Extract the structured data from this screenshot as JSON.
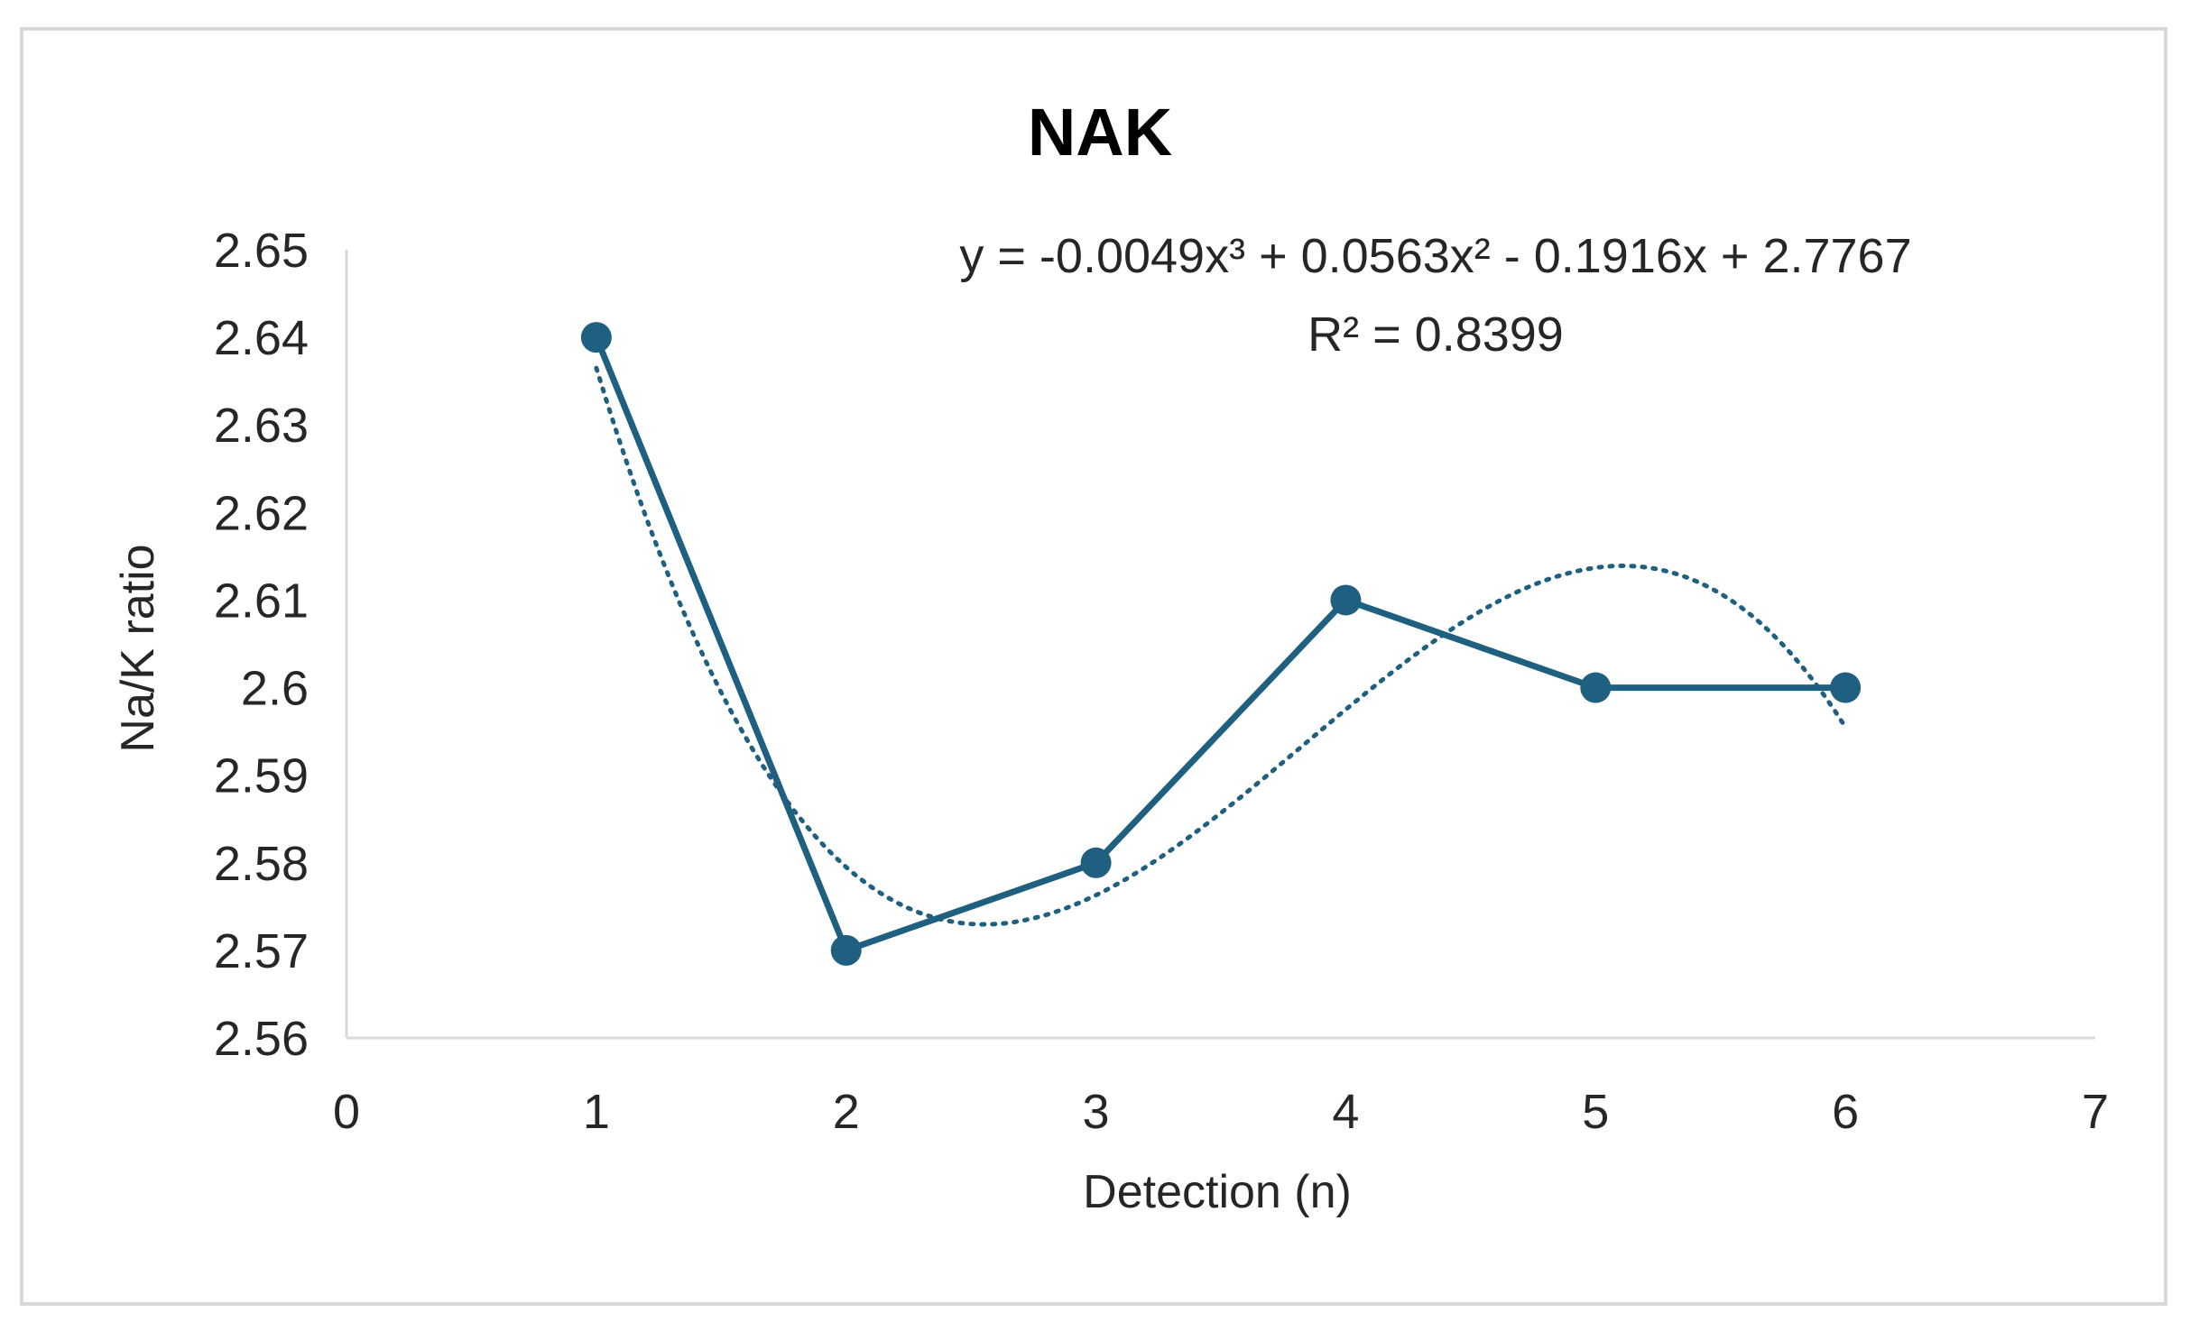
{
  "chart_data": {
    "type": "scatter",
    "title": "NAK",
    "xlabel": "Detection (n)",
    "ylabel": "Na/K ratio",
    "xlim": [
      0,
      7
    ],
    "ylim": [
      2.56,
      2.65
    ],
    "x_ticks": [
      "0",
      "1",
      "2",
      "3",
      "4",
      "5",
      "6",
      "7"
    ],
    "y_ticks": [
      "2.56",
      "2.57",
      "2.58",
      "2.59",
      "2.6",
      "2.61",
      "2.62",
      "2.63",
      "2.64",
      "2.65"
    ],
    "series": [
      {
        "x": [
          1,
          2,
          3,
          4,
          5,
          6
        ],
        "y": [
          2.64,
          2.57,
          2.58,
          2.61,
          2.6,
          2.6
        ],
        "color": "#1f5f7f",
        "markers": true,
        "line": "solid"
      }
    ],
    "trendline": {
      "type": "polynomial",
      "order": 3,
      "coefficients": [
        -0.0049,
        0.0563,
        -0.1916,
        2.7767
      ],
      "x_range": [
        1,
        6
      ],
      "color": "#1f5f7f",
      "line": "dotted",
      "equation_label": "y = -0.0049x³ + 0.0563x² - 0.1916x + 2.7767",
      "r2_label": "R² = 0.8399"
    },
    "grid": false,
    "legend": "none"
  }
}
